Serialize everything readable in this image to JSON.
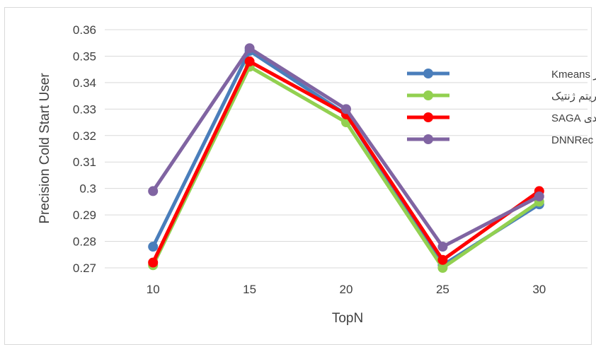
{
  "chart_data": {
    "type": "line",
    "xlabel": "TopN",
    "ylabel": "Precision Cold Start User",
    "categories": [
      "10",
      "15",
      "20",
      "25",
      "30"
    ],
    "ylim": [
      0.27,
      0.36
    ],
    "yticks": [
      "0.27",
      "0.28",
      "0.29",
      "0.3",
      "0.31",
      "0.32",
      "0.33",
      "0.34",
      "0.35",
      "0.36"
    ],
    "grid": true,
    "legend_position": "right",
    "series": [
      {
        "name": "روش مبتنی بر Kmeans",
        "color": "#4a7ebb",
        "values": [
          0.278,
          0.352,
          0.328,
          0.271,
          0.294
        ]
      },
      {
        "name": "روش مبتنی بر الگوریتم ژنتیک",
        "color": "#92d050",
        "values": [
          0.271,
          0.346,
          0.325,
          0.27,
          0.295
        ]
      },
      {
        "name": "روش پیشنهادی SAGA",
        "color": "#ff0000",
        "values": [
          0.272,
          0.348,
          0.328,
          0.273,
          0.299
        ]
      },
      {
        "name": "روش DNNRec",
        "color": "#8064a2",
        "values": [
          0.299,
          0.353,
          0.33,
          0.278,
          0.297
        ]
      }
    ]
  }
}
